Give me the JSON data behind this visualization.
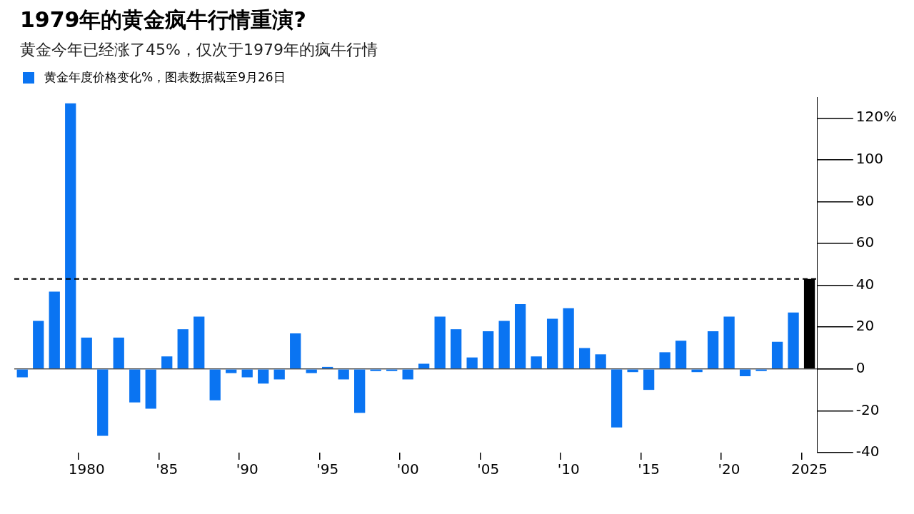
{
  "chart_data": {
    "type": "bar",
    "title": "1979年的黄金疯牛行情重演?",
    "subtitle": "黄金今年已经涨了45%，仅次于1979年的疯牛行情",
    "categories": [
      null,
      null,
      null,
      null,
      "1980",
      null,
      null,
      null,
      null,
      "'85",
      null,
      null,
      null,
      null,
      "'90",
      null,
      null,
      null,
      null,
      "'95",
      null,
      null,
      null,
      null,
      "'00",
      null,
      null,
      null,
      null,
      "'05",
      null,
      null,
      null,
      null,
      "'10",
      null,
      null,
      null,
      null,
      "'15",
      null,
      null,
      null,
      null,
      "'20",
      null,
      null,
      null,
      null,
      "2025"
    ],
    "series": [
      {
        "name": "黄金年度价格变化%，图表数据截至9月26日",
        "color": "#0a74f2",
        "colors": [
          "#0a74f2",
          "#0a74f2",
          "#0a74f2",
          "#0a74f2",
          "#0a74f2",
          "#0a74f2",
          "#0a74f2",
          "#0a74f2",
          "#0a74f2",
          "#0a74f2",
          "#0a74f2",
          "#0a74f2",
          "#0a74f2",
          "#0a74f2",
          "#0a74f2",
          "#0a74f2",
          "#0a74f2",
          "#0a74f2",
          "#0a74f2",
          "#0a74f2",
          "#0a74f2",
          "#0a74f2",
          "#0a74f2",
          "#0a74f2",
          "#0a74f2",
          "#0a74f2",
          "#0a74f2",
          "#0a74f2",
          "#0a74f2",
          "#0a74f2",
          "#0a74f2",
          "#0a74f2",
          "#0a74f2",
          "#0a74f2",
          "#0a74f2",
          "#0a74f2",
          "#0a74f2",
          "#0a74f2",
          "#0a74f2",
          "#0a74f2",
          "#0a74f2",
          "#0a74f2",
          "#0a74f2",
          "#0a74f2",
          "#0a74f2",
          "#0a74f2",
          "#0a74f2",
          "#0a74f2",
          "#0a74f2",
          "#000000"
        ],
        "values": [
          -4,
          23,
          37,
          127,
          15,
          -32,
          15,
          -16,
          -19,
          6,
          19,
          25,
          -15,
          -2,
          -4,
          -7,
          -5,
          17,
          -2,
          1,
          -5,
          -21,
          -1,
          -1,
          -5,
          2.5,
          25,
          19,
          5.5,
          18,
          23,
          31,
          6,
          24,
          29,
          10,
          7,
          -28,
          -1.5,
          -10,
          8,
          13.5,
          -1.5,
          18,
          25,
          -3.5,
          -1,
          13,
          27,
          43
        ]
      }
    ],
    "ylim": [
      -40,
      130
    ],
    "yticks": [
      {
        "value": -40,
        "label": "-40"
      },
      {
        "value": -20,
        "label": "-20"
      },
      {
        "value": 0,
        "label": "0"
      },
      {
        "value": 20,
        "label": "20"
      },
      {
        "value": 40,
        "label": "40"
      },
      {
        "value": 60,
        "label": "60"
      },
      {
        "value": 80,
        "label": "80"
      },
      {
        "value": 100,
        "label": "100"
      },
      {
        "value": 120,
        "label": "120%"
      }
    ],
    "ref_lines": [
      {
        "axis": "y",
        "value": 43,
        "color": "#000000",
        "line_style": "dashed"
      }
    ],
    "legend": "top left",
    "grid": "y"
  }
}
